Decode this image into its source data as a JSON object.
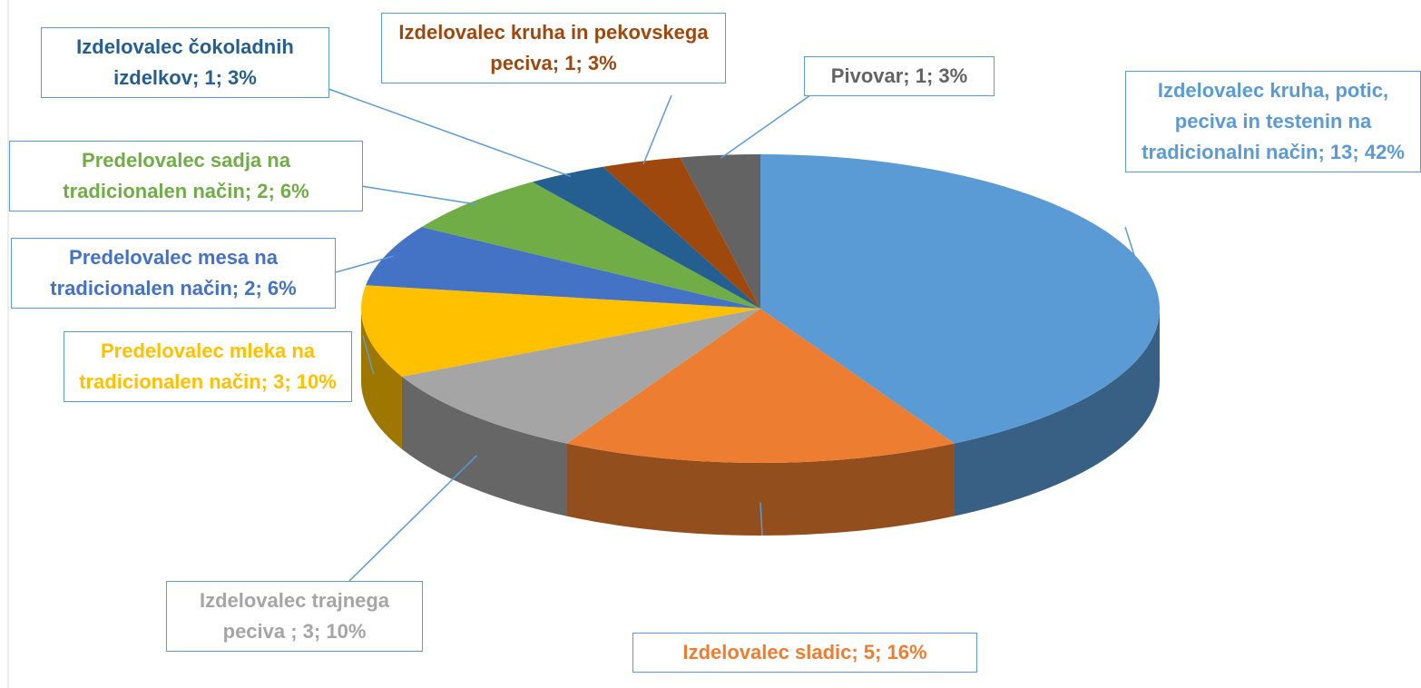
{
  "chart_data": {
    "type": "pie3d",
    "values": [
      13,
      5,
      3,
      3,
      2,
      2,
      1,
      1,
      1
    ],
    "value_labels": [
      "Izdelovalec kruha, potic, peciva in testenin na tradicionalni način; 13; 42%",
      "Izdelovalec sladic; 5; 16%",
      "Izdelovalec trajnega peciva ; 3; 10%",
      "Predelovalec mleka na tradicionalen način; 3; 10%",
      "Predelovalec mesa na tradicionalen način; 2; 6%",
      "Predelovalec sadja na tradicionalen način; 2; 6%",
      "Izdelovalec čokoladnih izdelkov; 1; 3%",
      "Izdelovalec kruha in pekovskega peciva; 1; 3%",
      "Pivovar; 1; 3%"
    ],
    "colors": [
      "#5B9BD5",
      "#ED7D31",
      "#A5A5A5",
      "#FFC000",
      "#4472C4",
      "#70AD47",
      "#255E91",
      "#9E480E",
      "#636363"
    ]
  }
}
